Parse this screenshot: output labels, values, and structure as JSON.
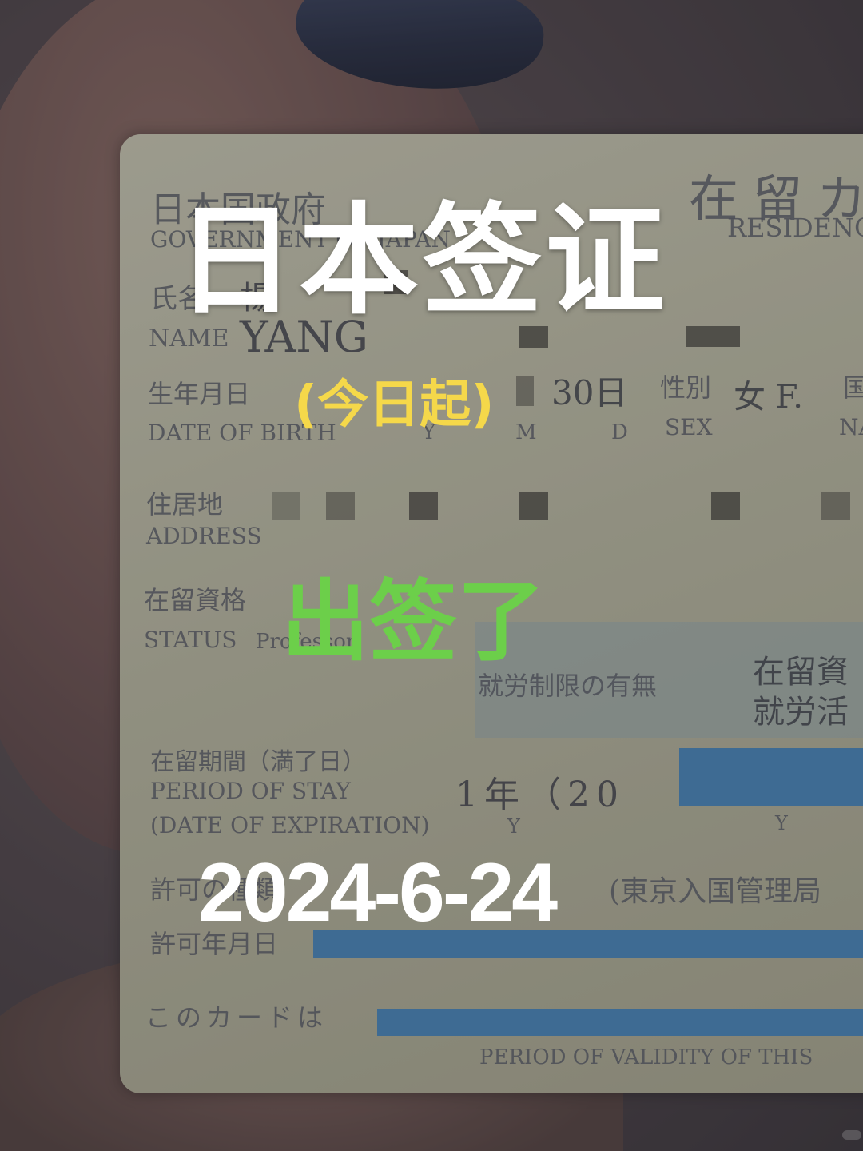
{
  "overlay": {
    "title": "日本签证",
    "subtitle": "(今日起)",
    "issued": "出签了",
    "date": "2024-6-24"
  },
  "card": {
    "issuer_jp": "日本国政府",
    "issuer_en": "GOVERNMENT OF JAPAN",
    "card_title_jp": "在留カ",
    "card_title_en": "RESIDENCE",
    "name_label_jp": "氏名",
    "name_jp": "楊",
    "name_label_en": "NAME",
    "name_en": "YANG",
    "dob_label_jp": "生年月日",
    "dob_label_en": "DATE OF BIRTH",
    "dob_day": "30日",
    "dob_y": "Y",
    "dob_m": "M",
    "dob_d": "D",
    "sex_label_jp": "性別",
    "sex_label_en": "SEX",
    "sex_value": "女 F.",
    "nat_label_jp": "国",
    "nat_label_en": "NA",
    "address_label_jp": "住居地",
    "address_label_en": "ADDRESS",
    "status_label_jp": "在留資格",
    "status_label_en": "STATUS",
    "status_value": "Professor",
    "work_label": "就労制限の有無",
    "work_value_1": "在留資",
    "work_value_2": "就労活",
    "period_label_jp": "在留期間（満了日）",
    "period_label_en_1": "PERIOD OF STAY",
    "period_label_en_2": "(DATE OF EXPIRATION)",
    "period_value": "1年（20",
    "period_y1": "Y",
    "period_y2": "Y",
    "permit_type_label": "許可の種類",
    "permit_office": "(東京入国管理局",
    "permit_date_label": "許可年月日",
    "validity_label_jp": "このカードは",
    "validity_label_en": "PERIOD OF VALIDITY OF THIS"
  }
}
